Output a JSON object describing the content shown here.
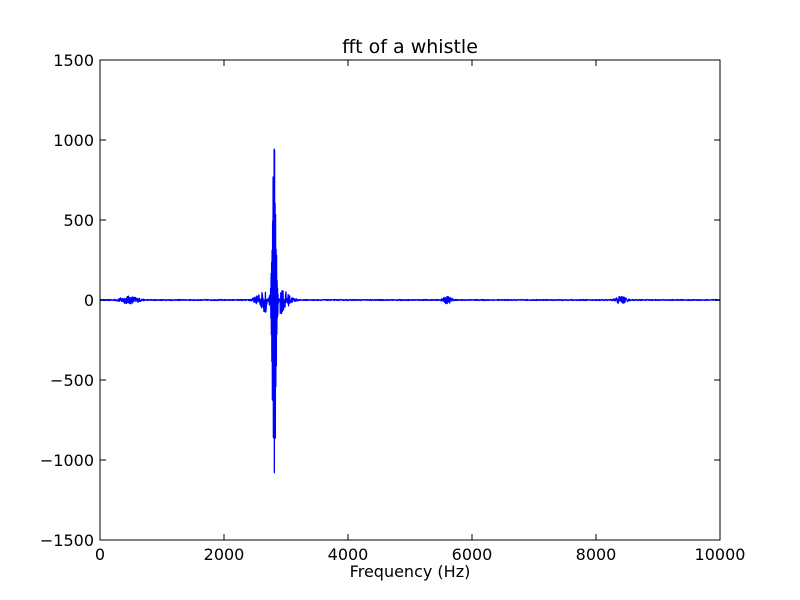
{
  "chart_data": {
    "type": "line",
    "title": "fft of a whistle",
    "xlabel": "Frequency (Hz)",
    "ylabel": "",
    "xlim": [
      0,
      10000
    ],
    "ylim": [
      -1500,
      1500
    ],
    "xticks": [
      0,
      2000,
      4000,
      6000,
      8000,
      10000
    ],
    "xtick_labels": [
      "0",
      "2000",
      "4000",
      "6000",
      "8000",
      "10000"
    ],
    "yticks": [
      1500,
      1000,
      500,
      0,
      -500,
      -1000,
      -1500
    ],
    "ytick_labels": [
      "1500",
      "1000",
      "500",
      "0",
      "−500",
      "−1000",
      "−1500"
    ],
    "grid": false,
    "legend": "none",
    "series": [
      {
        "color": "#0000ff",
        "components": [
          {
            "x_range": [
              0,
              10000
            ],
            "peak": 3
          },
          {
            "x_range": [
              150,
              800
            ],
            "peak": 25
          },
          {
            "x_range": [
              2400,
              3200
            ],
            "peak": 120
          },
          {
            "x_range": [
              2700,
              2900
            ],
            "peak": 1050,
            "min": -1230
          },
          {
            "x_range": [
              5450,
              5750
            ],
            "peak": 25
          },
          {
            "x_range": [
              8200,
              8600
            ],
            "peak": 25
          }
        ]
      }
    ]
  }
}
